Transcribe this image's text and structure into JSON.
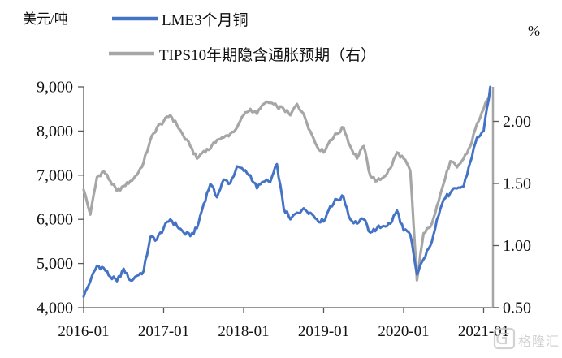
{
  "header": {
    "left_axis_unit": "美元/吨",
    "right_axis_unit": "%"
  },
  "legend": {
    "items": [
      {
        "label": "LME3个月铜",
        "color": "#4472C4"
      },
      {
        "label": "TIPS10年期隐含通胀预期（右）",
        "color": "#A6A6A6"
      }
    ]
  },
  "watermark": {
    "text": "格隆汇"
  },
  "colors": {
    "copper": "#4472C4",
    "tips": "#A6A6A6",
    "axis": "#595959",
    "right_axis": "#A6A6A6",
    "tick_text": "#111111",
    "watermark": "#c8c8c8"
  },
  "chart_data": {
    "type": "line",
    "title": "",
    "grid": false,
    "legend_position": "top",
    "x": [
      "2016-01",
      "2016-02",
      "2016-03",
      "2016-04",
      "2016-05",
      "2016-06",
      "2016-07",
      "2016-08",
      "2016-09",
      "2016-10",
      "2016-11",
      "2016-12",
      "2017-01",
      "2017-02",
      "2017-03",
      "2017-04",
      "2017-05",
      "2017-06",
      "2017-07",
      "2017-08",
      "2017-09",
      "2017-10",
      "2017-11",
      "2017-12",
      "2018-01",
      "2018-02",
      "2018-03",
      "2018-04",
      "2018-05",
      "2018-06",
      "2018-07",
      "2018-08",
      "2018-09",
      "2018-10",
      "2018-11",
      "2018-12",
      "2019-01",
      "2019-02",
      "2019-03",
      "2019-04",
      "2019-05",
      "2019-06",
      "2019-07",
      "2019-08",
      "2019-09",
      "2019-10",
      "2019-11",
      "2019-12",
      "2020-01",
      "2020-02",
      "2020-03",
      "2020-04",
      "2020-05",
      "2020-06",
      "2020-07",
      "2020-08",
      "2020-09",
      "2020-10",
      "2020-11",
      "2020-12",
      "2021-01",
      "2021-02"
    ],
    "series": [
      {
        "name": "LME3个月铜",
        "axis": "left",
        "unit": "美元/吨",
        "color": "#4472C4",
        "values": [
          4250,
          4600,
          4950,
          4900,
          4700,
          4600,
          4880,
          4620,
          4720,
          4830,
          5600,
          5550,
          5800,
          6000,
          5850,
          5700,
          5620,
          5800,
          6350,
          6800,
          6500,
          6900,
          6820,
          7200,
          7100,
          7000,
          6700,
          6850,
          6850,
          7250,
          6250,
          6000,
          6150,
          6250,
          6150,
          6000,
          5950,
          6300,
          6450,
          6500,
          6000,
          5900,
          6000,
          5700,
          5800,
          5850,
          5900,
          6200,
          5750,
          5650,
          4750,
          5100,
          5400,
          6000,
          6450,
          6600,
          6700,
          6750,
          7300,
          7850,
          8000,
          9000
        ]
      },
      {
        "name": "TIPS10年期隐含通胀预期（右）",
        "axis": "right",
        "unit": "%",
        "color": "#A6A6A6",
        "values": [
          1.45,
          1.25,
          1.55,
          1.6,
          1.52,
          1.44,
          1.48,
          1.52,
          1.57,
          1.67,
          1.85,
          1.95,
          2.0,
          2.05,
          1.97,
          1.88,
          1.8,
          1.7,
          1.76,
          1.78,
          1.85,
          1.87,
          1.9,
          1.95,
          2.05,
          2.1,
          2.06,
          2.14,
          2.15,
          2.12,
          2.1,
          2.05,
          2.14,
          2.06,
          1.92,
          1.8,
          1.75,
          1.85,
          1.9,
          1.95,
          1.8,
          1.7,
          1.8,
          1.56,
          1.52,
          1.55,
          1.62,
          1.75,
          1.7,
          1.6,
          0.72,
          1.1,
          1.15,
          1.32,
          1.5,
          1.68,
          1.63,
          1.7,
          1.8,
          1.98,
          2.1,
          2.23
        ]
      }
    ],
    "left_axis": {
      "label": "美元/吨",
      "ticks": [
        "4,000",
        "5,000",
        "6,000",
        "7,000",
        "8,000",
        "9,000"
      ],
      "tick_values": [
        4000,
        5000,
        6000,
        7000,
        8000,
        9000
      ],
      "range": [
        4000,
        9000
      ]
    },
    "right_axis": {
      "label": "%",
      "ticks": [
        "0.50",
        "1.00",
        "1.50",
        "2.00"
      ],
      "tick_values": [
        0.5,
        1.0,
        1.5,
        2.0
      ],
      "range": [
        0.5,
        2.28
      ]
    },
    "x_ticks": [
      "2016-01",
      "2017-01",
      "2018-01",
      "2019-01",
      "2020-01",
      "2021-01"
    ]
  }
}
